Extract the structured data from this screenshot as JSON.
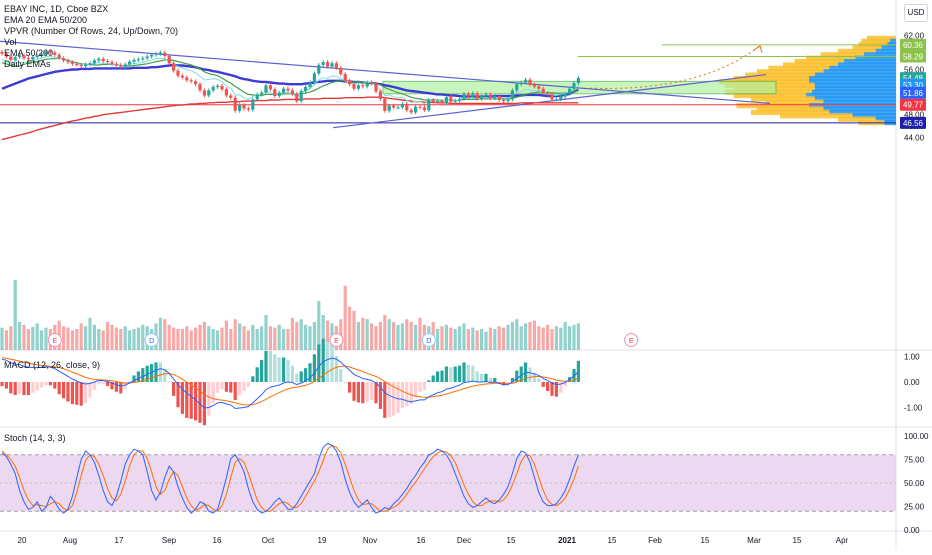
{
  "legend": {
    "symbol": "EBAY INC, 1D, Cboe BZX",
    "ema": "EMA 20 EMA 50/200",
    "vpvr": "VPVR (Number Of Rows, 24, Up/Down, 70)",
    "vol": "Vol",
    "ema2": "EMA 50/200",
    "daily": "Daily EMAs"
  },
  "currency": "USD",
  "macd_title": "MACD (12, 26, close, 9)",
  "stoch_title": "Stoch (14, 3, 3)",
  "price_axis": [
    "62.00",
    "60.00",
    "58.00",
    "56.00",
    "54.00",
    "52.00",
    "50.00",
    "48.00",
    "46.00",
    "44.00"
  ],
  "price_labels": [
    {
      "text": "60.36",
      "value": 60.36,
      "color": "#8bc34a"
    },
    {
      "text": "58.29",
      "value": 58.29,
      "color": "#8bc34a"
    },
    {
      "text": "54.48",
      "value": 54.48,
      "color": "#26a69a"
    },
    {
      "text": "53.30",
      "value": 53.3,
      "color": "#2196f3"
    },
    {
      "text": "51.86",
      "value": 51.86,
      "color": "#2962ff"
    },
    {
      "text": "49.77",
      "value": 49.77,
      "color": "#f23645"
    },
    {
      "text": "46.56",
      "value": 46.56,
      "color": "#1e22aa"
    }
  ],
  "macd_axis": [
    "1.00",
    "0.00",
    "-1.00"
  ],
  "stoch_axis": [
    "100.00",
    "75.00",
    "50.00",
    "25.00",
    "0.00"
  ],
  "time_axis": [
    "20",
    "Aug",
    "17",
    "Sep",
    "16",
    "Oct",
    "19",
    "Nov",
    "16",
    "Dec",
    "15",
    "2021",
    "15",
    "Feb",
    "15",
    "Mar",
    "15",
    "Apr"
  ],
  "events": [
    {
      "label": "E",
      "bar": 12
    },
    {
      "label": "D",
      "bar": 34
    },
    {
      "label": "E",
      "bar": 76
    },
    {
      "label": "D",
      "bar": 97
    },
    {
      "label": "E",
      "bar": 143
    }
  ],
  "chart_data": {
    "type": "candlestick",
    "title": "EBAY INC, 1D, Cboe BZX",
    "ylim": [
      43.0,
      63.5
    ],
    "close": [
      58.8,
      58.3,
      57.7,
      58.2,
      58.5,
      58.0,
      57.8,
      58.2,
      58.4,
      58.7,
      59.2,
      59.0,
      58.6,
      58.0,
      57.6,
      57.3,
      57.0,
      56.8,
      56.6,
      56.9,
      57.1,
      57.6,
      57.9,
      57.5,
      57.3,
      57.0,
      56.8,
      56.5,
      56.9,
      57.4,
      57.7,
      57.8,
      58.0,
      58.3,
      58.6,
      58.8,
      59.0,
      58.4,
      57.1,
      55.8,
      54.9,
      54.6,
      54.1,
      53.9,
      53.4,
      52.3,
      51.4,
      52.3,
      52.9,
      53.1,
      52.5,
      51.4,
      51.0,
      48.7,
      49.7,
      49.1,
      48.9,
      50.7,
      51.6,
      51.9,
      53.2,
      52.5,
      51.3,
      51.9,
      52.6,
      52.3,
      51.7,
      50.4,
      52.2,
      52.9,
      53.7,
      55.3,
      56.8,
      57.3,
      56.5,
      57.1,
      56.3,
      55.2,
      54.0,
      53.4,
      52.6,
      53.2,
      53.0,
      53.7,
      53.5,
      52.1,
      50.8,
      48.7,
      49.6,
      49.3,
      49.3,
      49.9,
      48.8,
      48.4,
      49.4,
      49.3,
      48.8,
      50.6,
      50.3,
      50.4,
      50.0,
      51.1,
      50.3,
      50.5,
      50.8,
      51.7,
      51.2,
      51.8,
      50.8,
      51.3,
      51.6,
      50.9,
      51.3,
      50.6,
      50.4,
      50.7,
      52.3,
      53.4,
      53.7,
      54.2,
      53.3,
      53.0,
      52.6,
      51.8,
      51.6,
      50.7,
      50.7,
      51.2,
      51.7,
      52.6,
      53.6,
      54.5
    ],
    "ema20": [
      57.2,
      57.0,
      56.7,
      56.6,
      56.6,
      56.9,
      57.2,
      57.3,
      57.4,
      57.6,
      57.8,
      57.9,
      57.9,
      58.0,
      57.9,
      57.6,
      57.4,
      57.2,
      57.0,
      56.9,
      56.9,
      56.8,
      56.8,
      56.9,
      56.9,
      56.9,
      56.8,
      56.7,
      56.6,
      56.6,
      56.7,
      56.8,
      56.9,
      57.0,
      57.2,
      57.4,
      57.5,
      57.7,
      57.7,
      57.6,
      57.4,
      57.2,
      57.0,
      56.8,
      56.5,
      56.1,
      55.6,
      55.3,
      55.1,
      54.9,
      54.5,
      54.0,
      53.6,
      53.0,
      52.5,
      52.0,
      51.6,
      51.5,
      51.4,
      51.4,
      51.6,
      51.6,
      51.6,
      51.6,
      51.7,
      51.7,
      51.7,
      51.6,
      51.7,
      51.8,
      52.0,
      52.3,
      52.7,
      53.1,
      53.4,
      53.7,
      53.9,
      54.0,
      54.0,
      53.9,
      53.8,
      53.8,
      53.7,
      53.7,
      53.7,
      53.5,
      53.3,
      52.8,
      52.5,
      52.2,
      51.9,
      51.7,
      51.4,
      51.1,
      50.9,
      50.8,
      50.6,
      50.6,
      50.6,
      50.6,
      50.5,
      50.6,
      50.6,
      50.5,
      50.6,
      50.7,
      50.7,
      50.7,
      50.7,
      50.8,
      50.8,
      50.8,
      50.8,
      50.8,
      50.8,
      50.8,
      50.9,
      51.1,
      51.3,
      51.6,
      51.8,
      51.9,
      52.0,
      52.0,
      51.9,
      51.9,
      51.8,
      51.8,
      51.8,
      51.9,
      52.1,
      52.4
    ],
    "ema50": [
      52.6,
      52.9,
      53.2,
      53.5,
      53.8,
      54.1,
      54.4,
      54.6,
      54.8,
      55.0,
      55.2,
      55.4,
      55.6,
      55.7,
      55.8,
      55.9,
      56.0,
      56.0,
      56.1,
      56.1,
      56.1,
      56.2,
      56.2,
      56.2,
      56.2,
      56.2,
      56.2,
      56.2,
      56.2,
      56.2,
      56.3,
      56.3,
      56.3,
      56.3,
      56.4,
      56.4,
      56.5,
      56.6,
      56.7,
      56.8,
      56.7,
      56.7,
      56.6,
      56.5,
      56.4,
      56.2,
      56.0,
      55.9,
      55.7,
      55.6,
      55.4,
      55.2,
      55.0,
      54.8,
      54.5,
      54.3,
      54.2,
      54.0,
      53.9,
      53.8,
      53.8,
      53.7,
      53.6,
      53.5,
      53.5,
      53.4,
      53.4,
      53.4,
      53.4,
      53.5,
      53.6,
      53.7,
      53.8,
      53.9,
      54.0,
      54.0,
      54.0,
      54.0,
      53.9,
      53.9,
      53.8,
      53.8,
      53.7,
      53.6,
      53.6,
      53.5,
      53.4,
      53.2,
      53.1,
      52.9,
      52.7,
      52.5,
      52.3,
      52.2,
      52.1,
      52.0,
      51.9,
      51.8,
      51.7,
      51.6,
      51.6,
      51.5,
      51.4,
      51.4,
      51.3,
      51.2,
      51.2,
      51.2,
      51.2,
      51.2,
      51.2,
      51.2,
      51.3,
      51.3,
      51.3,
      51.3,
      51.3,
      51.4,
      51.4,
      51.5,
      51.5,
      51.5,
      51.5,
      51.4,
      51.3,
      51.3,
      51.3,
      51.4,
      51.5,
      51.7,
      52.1,
      52.4
    ],
    "ema200": [
      43.6,
      43.8,
      44.0,
      44.2,
      44.4,
      44.6,
      44.8,
      45.0,
      45.3,
      45.5,
      45.7,
      45.9,
      46.1,
      46.3,
      46.5,
      46.7,
      46.9,
      47.0,
      47.2,
      47.4,
      47.5,
      47.7,
      47.8,
      48.0,
      48.1,
      48.2,
      48.3,
      48.4,
      48.5,
      48.6,
      48.7,
      48.8,
      48.9,
      49.0,
      49.1,
      49.2,
      49.3,
      49.4,
      49.5,
      49.6,
      49.7,
      49.7,
      49.8,
      49.9,
      49.9,
      50.0,
      50.0,
      50.1,
      50.1,
      50.2,
      50.2,
      50.2,
      50.3,
      50.3,
      50.3,
      50.4,
      50.4,
      50.4,
      50.5,
      50.5,
      50.5,
      50.6,
      50.6,
      50.6,
      50.7,
      50.7,
      50.7,
      50.7,
      50.7,
      50.8,
      50.8,
      50.8,
      50.8,
      50.9,
      50.9,
      50.9,
      50.9,
      50.9,
      51.0,
      51.0,
      51.0,
      51.0,
      51.0,
      51.1,
      51.1,
      51.1,
      51.1,
      51.0,
      50.9,
      50.8,
      50.7,
      50.6,
      50.5,
      50.4,
      50.3,
      50.3,
      50.2,
      50.2,
      50.2,
      50.1,
      50.1,
      50.1,
      50.0,
      50.0,
      50.0,
      50.0,
      50.0,
      50.0,
      50.0,
      50.0,
      50.0,
      50.0,
      50.0,
      50.0,
      50.0,
      50.0,
      50.0,
      50.0,
      50.1,
      50.1,
      50.1,
      50.1,
      50.1,
      50.1,
      50.1,
      50.1,
      50.1,
      50.1,
      50.1,
      50.1,
      50.1,
      50.1
    ],
    "volume": [
      0.32,
      0.28,
      0.34,
      1.0,
      0.4,
      0.36,
      0.3,
      0.33,
      0.38,
      0.28,
      0.32,
      0.3,
      0.36,
      0.42,
      0.34,
      0.32,
      0.28,
      0.3,
      0.38,
      0.34,
      0.46,
      0.36,
      0.3,
      0.28,
      0.4,
      0.36,
      0.32,
      0.3,
      0.34,
      0.28,
      0.3,
      0.32,
      0.36,
      0.34,
      0.3,
      0.38,
      0.46,
      0.44,
      0.36,
      0.32,
      0.3,
      0.3,
      0.34,
      0.28,
      0.32,
      0.36,
      0.4,
      0.34,
      0.3,
      0.28,
      0.32,
      0.42,
      0.3,
      0.44,
      0.38,
      0.34,
      0.28,
      0.36,
      0.3,
      0.34,
      0.5,
      0.34,
      0.32,
      0.36,
      0.3,
      0.3,
      0.46,
      0.4,
      0.44,
      0.36,
      0.34,
      0.4,
      0.7,
      0.5,
      0.42,
      0.38,
      0.34,
      0.44,
      0.92,
      0.62,
      0.56,
      0.4,
      0.46,
      0.44,
      0.38,
      0.34,
      0.4,
      0.5,
      0.44,
      0.4,
      0.36,
      0.38,
      0.44,
      0.4,
      0.36,
      0.46,
      0.36,
      0.34,
      0.4,
      0.3,
      0.34,
      0.36,
      0.32,
      0.3,
      0.34,
      0.38,
      0.3,
      0.32,
      0.28,
      0.3,
      0.26,
      0.32,
      0.3,
      0.34,
      0.32,
      0.36,
      0.4,
      0.44,
      0.34,
      0.38,
      0.4,
      0.42,
      0.34,
      0.32,
      0.36,
      0.3,
      0.34,
      0.32,
      0.4,
      0.34,
      0.36,
      0.38
    ],
    "macd": [
      0.9,
      0.85,
      0.75,
      0.7,
      0.68,
      0.62,
      0.58,
      0.57,
      0.56,
      0.58,
      0.6,
      0.58,
      0.52,
      0.42,
      0.32,
      0.22,
      0.12,
      0.04,
      -0.04,
      -0.08,
      -0.06,
      0.0,
      0.06,
      0.06,
      0.02,
      -0.04,
      -0.1,
      -0.16,
      -0.12,
      -0.04,
      0.06,
      0.14,
      0.22,
      0.3,
      0.38,
      0.46,
      0.52,
      0.48,
      0.34,
      0.12,
      -0.1,
      -0.28,
      -0.44,
      -0.56,
      -0.7,
      -0.86,
      -1.02,
      -1.0,
      -0.92,
      -0.82,
      -0.8,
      -0.86,
      -0.9,
      -1.04,
      -1.02,
      -1.0,
      -0.96,
      -0.82,
      -0.66,
      -0.5,
      -0.3,
      -0.2,
      -0.16,
      -0.12,
      -0.04,
      0.0,
      -0.02,
      -0.1,
      -0.04,
      0.04,
      0.16,
      0.36,
      0.6,
      0.8,
      0.88,
      0.94,
      0.9,
      0.78,
      0.62,
      0.46,
      0.3,
      0.22,
      0.14,
      0.1,
      0.06,
      -0.04,
      -0.2,
      -0.42,
      -0.52,
      -0.6,
      -0.66,
      -0.68,
      -0.74,
      -0.78,
      -0.74,
      -0.7,
      -0.7,
      -0.58,
      -0.5,
      -0.42,
      -0.38,
      -0.28,
      -0.24,
      -0.18,
      -0.12,
      -0.02,
      0.0,
      0.04,
      0.0,
      0.0,
      0.02,
      -0.02,
      0.0,
      -0.06,
      -0.1,
      -0.1,
      0.0,
      0.14,
      0.26,
      0.38,
      0.36,
      0.32,
      0.26,
      0.14,
      0.06,
      -0.04,
      -0.1,
      -0.08,
      -0.02,
      0.1,
      0.24,
      0.4
    ],
    "signal": [
      0.95,
      0.93,
      0.89,
      0.86,
      0.82,
      0.78,
      0.74,
      0.7,
      0.67,
      0.65,
      0.64,
      0.62,
      0.6,
      0.57,
      0.52,
      0.46,
      0.39,
      0.32,
      0.25,
      0.18,
      0.13,
      0.1,
      0.09,
      0.08,
      0.07,
      0.05,
      0.02,
      -0.02,
      -0.04,
      -0.04,
      -0.02,
      0.01,
      0.05,
      0.1,
      0.16,
      0.22,
      0.28,
      0.32,
      0.33,
      0.29,
      0.21,
      0.11,
      0.0,
      -0.11,
      -0.23,
      -0.36,
      -0.49,
      -0.59,
      -0.66,
      -0.69,
      -0.71,
      -0.74,
      -0.77,
      -0.82,
      -0.86,
      -0.89,
      -0.9,
      -0.89,
      -0.84,
      -0.77,
      -0.68,
      -0.58,
      -0.5,
      -0.42,
      -0.34,
      -0.27,
      -0.22,
      -0.2,
      -0.17,
      -0.13,
      -0.07,
      0.02,
      0.14,
      0.27,
      0.39,
      0.5,
      0.58,
      0.62,
      0.62,
      0.59,
      0.53,
      0.47,
      0.4,
      0.34,
      0.28,
      0.22,
      0.13,
      0.02,
      -0.09,
      -0.19,
      -0.28,
      -0.36,
      -0.44,
      -0.51,
      -0.55,
      -0.58,
      -0.6,
      -0.6,
      -0.58,
      -0.55,
      -0.52,
      -0.47,
      -0.42,
      -0.37,
      -0.32,
      -0.26,
      -0.21,
      -0.16,
      -0.13,
      -0.1,
      -0.08,
      -0.07,
      -0.05,
      -0.05,
      -0.06,
      -0.07,
      -0.05,
      0.0,
      0.07,
      0.14,
      0.18,
      0.21,
      0.22,
      0.2,
      0.17,
      0.13,
      0.08,
      0.05,
      0.03,
      0.04,
      0.08,
      0.14
    ],
    "stoch_k": [
      82,
      78,
      70,
      60,
      42,
      30,
      22,
      24,
      30,
      20,
      24,
      36,
      30,
      22,
      18,
      22,
      36,
      56,
      75,
      84,
      80,
      72,
      58,
      42,
      30,
      26,
      36,
      52,
      70,
      80,
      86,
      84,
      80,
      62,
      42,
      32,
      40,
      56,
      68,
      62,
      46,
      34,
      24,
      18,
      22,
      30,
      28,
      20,
      18,
      22,
      38,
      56,
      76,
      80,
      72,
      62,
      44,
      30,
      22,
      18,
      20,
      24,
      30,
      34,
      28,
      22,
      22,
      28,
      36,
      44,
      52,
      60,
      76,
      88,
      92,
      90,
      84,
      72,
      54,
      40,
      30,
      24,
      28,
      32,
      24,
      18,
      20,
      24,
      22,
      28,
      32,
      38,
      44,
      52,
      58,
      66,
      72,
      80,
      82,
      86,
      84,
      80,
      72,
      60,
      48,
      36,
      28,
      24,
      26,
      30,
      34,
      30,
      28,
      32,
      38,
      46,
      60,
      76,
      84,
      82,
      72,
      56,
      40,
      30,
      26,
      26,
      28,
      34,
      42,
      54,
      68,
      80
    ],
    "stoch_d": [
      84,
      80,
      75,
      68,
      56,
      42,
      32,
      26,
      27,
      26,
      25,
      28,
      30,
      28,
      23,
      21,
      26,
      40,
      58,
      74,
      80,
      78,
      70,
      58,
      44,
      34,
      31,
      38,
      52,
      68,
      80,
      84,
      84,
      76,
      62,
      46,
      38,
      42,
      54,
      62,
      58,
      46,
      34,
      26,
      21,
      23,
      27,
      26,
      22,
      20,
      26,
      38,
      56,
      72,
      76,
      72,
      60,
      46,
      32,
      24,
      20,
      20,
      24,
      28,
      30,
      28,
      24,
      24,
      28,
      36,
      44,
      52,
      62,
      74,
      86,
      90,
      88,
      82,
      70,
      56,
      42,
      32,
      27,
      28,
      28,
      24,
      20,
      20,
      22,
      24,
      27,
      32,
      38,
      45,
      51,
      58,
      65,
      72,
      78,
      82,
      84,
      83,
      79,
      72,
      60,
      48,
      38,
      30,
      26,
      26,
      29,
      31,
      31,
      30,
      32,
      38,
      48,
      60,
      73,
      80,
      79,
      70,
      56,
      42,
      32,
      27,
      26,
      29,
      34,
      43,
      54,
      68
    ]
  }
}
